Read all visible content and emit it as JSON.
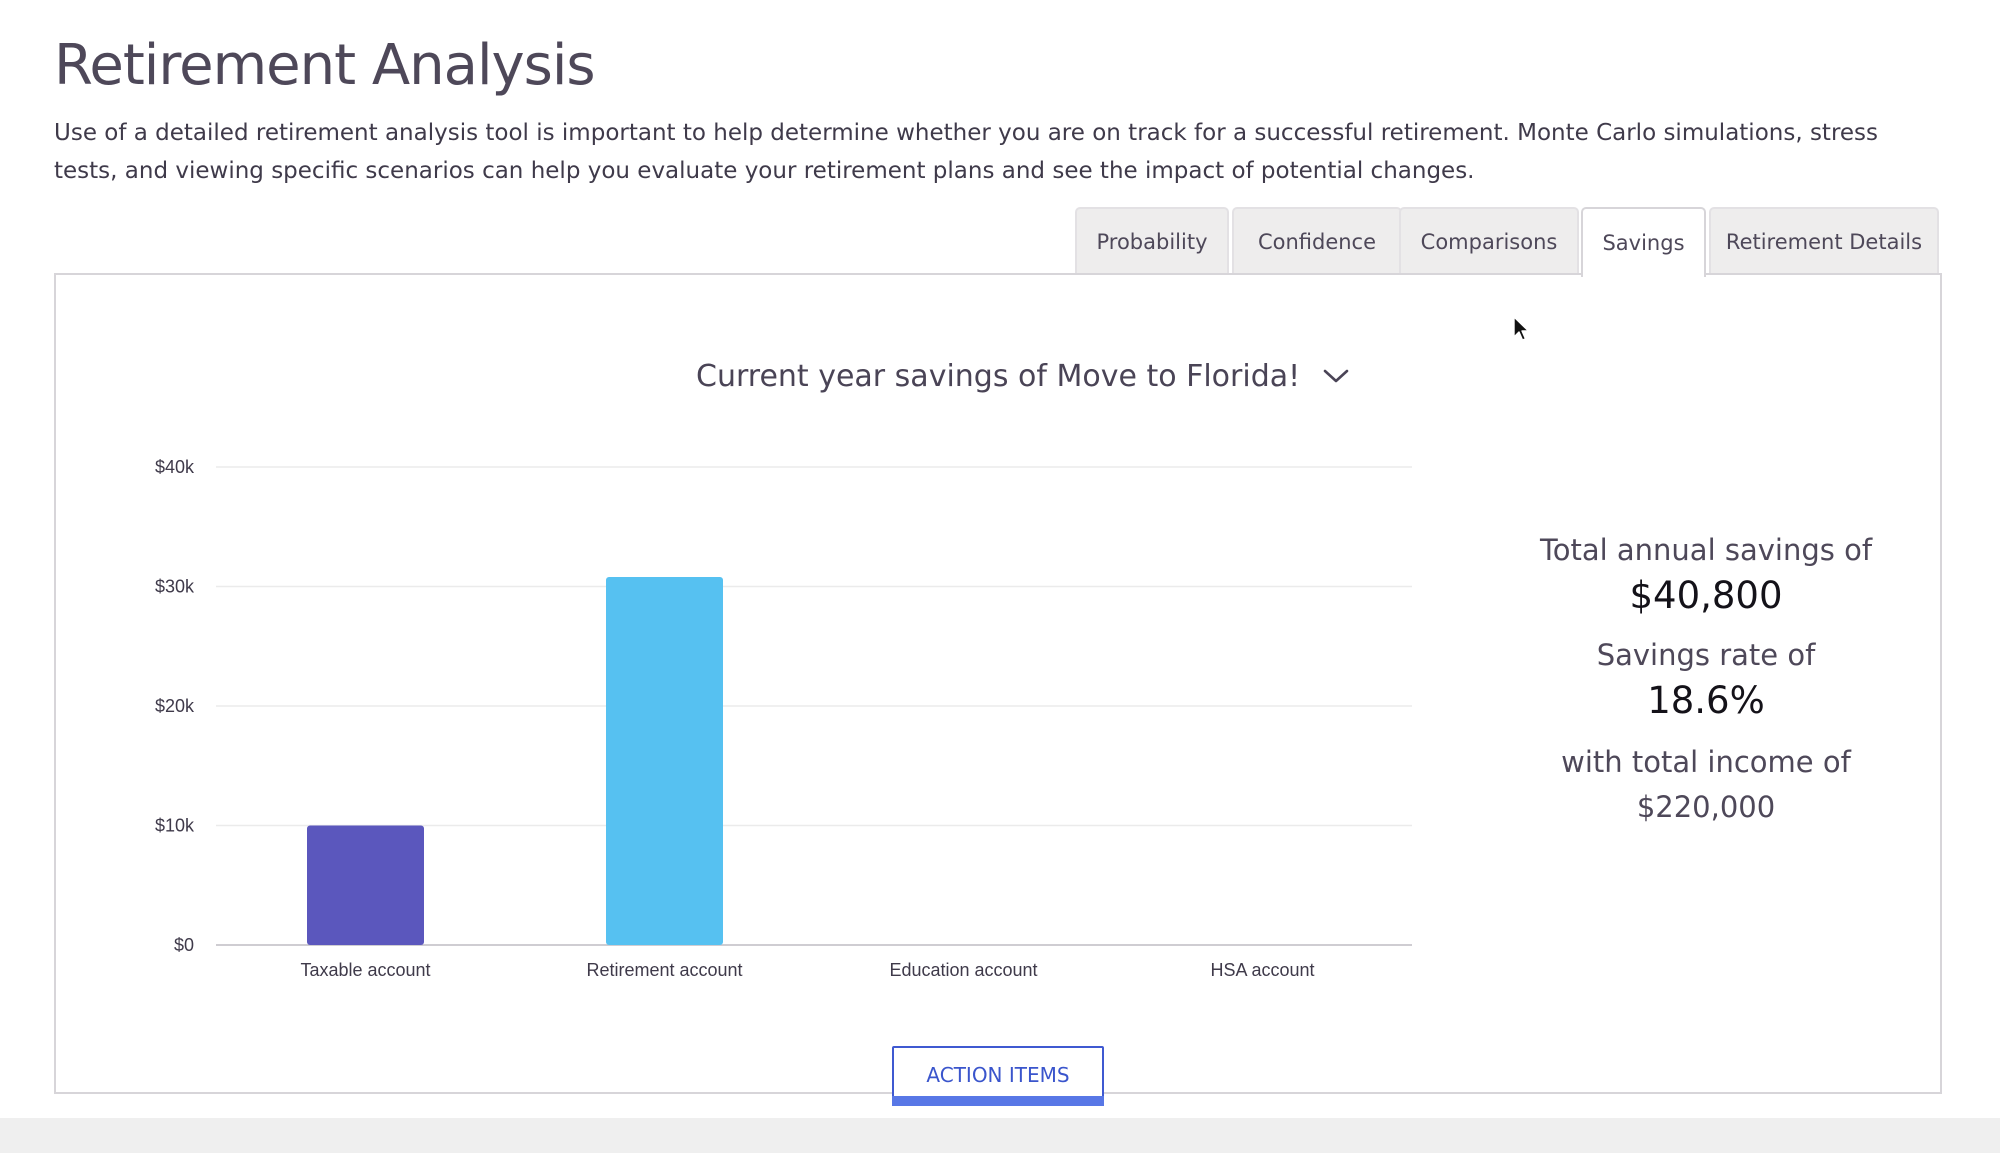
{
  "header": {
    "title": "Retirement Analysis",
    "description": "Use of a detailed retirement analysis tool is important to help determine whether you are on track for a successful retirement. Monte Carlo simulations, stress tests, and viewing specific scenarios can help you evaluate your retirement plans and see the impact of potential changes."
  },
  "tabs": [
    {
      "label": "Probability",
      "active": false
    },
    {
      "label": "Confidence",
      "active": false
    },
    {
      "label": "Comparisons",
      "active": false
    },
    {
      "label": "Savings",
      "active": true
    },
    {
      "label": "Retirement Details",
      "active": false
    }
  ],
  "scenario": {
    "label": "Current year savings of Move to Florida!",
    "icon": "chevron-down-icon"
  },
  "summary": {
    "savings_label": "Total annual savings of",
    "savings_value": "$40,800",
    "rate_label": "Savings rate of",
    "rate_value": "18.6%",
    "income_label": "with total income of",
    "income_value": "$220,000"
  },
  "actions": {
    "action_items_label": "ACTION ITEMS"
  },
  "chart_data": {
    "type": "bar",
    "categories": [
      "Taxable account",
      "Retirement account",
      "Education account",
      "HSA account"
    ],
    "values": [
      10000,
      30800,
      0,
      0
    ],
    "colors": [
      "#5b57bd",
      "#56c1f1",
      "#56c1f1",
      "#56c1f1"
    ],
    "ylim": [
      0,
      40000
    ],
    "yticks": [
      0,
      10000,
      20000,
      30000,
      40000
    ],
    "ytick_labels": [
      "$0",
      "$10k",
      "$20k",
      "$30k",
      "$40k"
    ],
    "grid": true,
    "title": "",
    "xlabel": "",
    "ylabel": ""
  }
}
